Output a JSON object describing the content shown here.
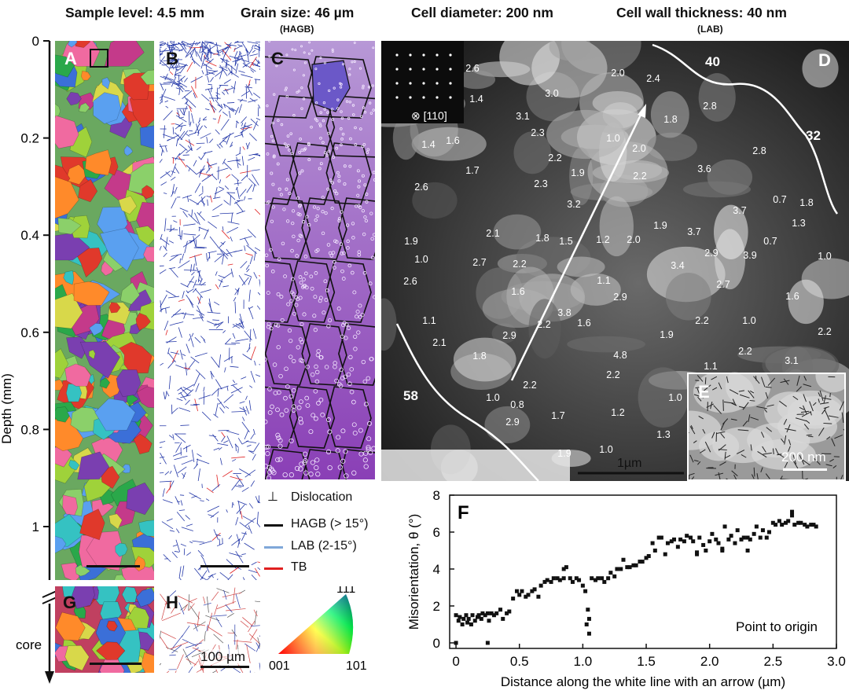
{
  "headers": {
    "sample_level": "Sample level: 4.5 mm",
    "grain_size": "Grain size: 46 µm",
    "grain_size_sub": "(HAGB)",
    "cell_diameter": "Cell diameter: 200 nm",
    "cell_wall": "Cell wall thickness: 40 nm",
    "cell_wall_sub": "(LAB)"
  },
  "panel_labels": {
    "A": "A",
    "B": "B",
    "C": "C",
    "D": "D",
    "E": "E",
    "F": "F",
    "G": "G",
    "H": "H"
  },
  "depth_axis": {
    "label": "Depth (mm)",
    "ticks": [
      "0",
      "0.2",
      "0.4",
      "0.6",
      "0.8",
      "1"
    ],
    "core_label": "core"
  },
  "legend": {
    "dislocation": "Dislocation",
    "hagb": "HAGB (> 15°)",
    "lab": "LAB (2-15°)",
    "tb": "TB",
    "colors": {
      "hagb": "#111111",
      "lab": "#7fa7d9",
      "tb": "#e02020"
    }
  },
  "ipf": {
    "top": "111",
    "left": "001",
    "right": "101"
  },
  "tem": {
    "inset_zone": "⊗ [110]",
    "scale_bar": "1µm",
    "wall_labels": [
      "40",
      "32",
      "58"
    ],
    "inset_e_scale": "200 nm",
    "cell_sizes": [
      [
        "2.6",
        601,
        91
      ],
      [
        "1.4",
        606,
        130
      ],
      [
        "3.0",
        702,
        123
      ],
      [
        "2.0",
        786,
        97
      ],
      [
        "2.4",
        831,
        104
      ],
      [
        "3.1",
        665,
        152
      ],
      [
        "1.8",
        853,
        156
      ],
      [
        "2.8",
        903,
        139
      ],
      [
        "2.3",
        684,
        173
      ],
      [
        "1.0",
        780,
        180
      ],
      [
        "2.0",
        813,
        193
      ],
      [
        "1.4",
        545,
        188
      ],
      [
        "1.6",
        576,
        183
      ],
      [
        "2.2",
        706,
        205
      ],
      [
        "2.8",
        966,
        196
      ],
      [
        "1.7",
        601,
        221
      ],
      [
        "1.9",
        735,
        224
      ],
      [
        "2.2",
        814,
        228
      ],
      [
        "3.6",
        896,
        219
      ],
      [
        "2.6",
        536,
        242
      ],
      [
        "2.3",
        688,
        238
      ],
      [
        "3.2",
        730,
        264
      ],
      [
        "0.7",
        992,
        258
      ],
      [
        "1.8",
        1026,
        262
      ],
      [
        "3.7",
        941,
        272
      ],
      [
        "1.3",
        1016,
        288
      ],
      [
        "2.1",
        627,
        301
      ],
      [
        "1.8",
        690,
        307
      ],
      [
        "1.5",
        720,
        311
      ],
      [
        "1.2",
        767,
        309
      ],
      [
        "2.0",
        806,
        309
      ],
      [
        "1.9",
        840,
        291
      ],
      [
        "3.7",
        883,
        299
      ],
      [
        "0.7",
        980,
        311
      ],
      [
        "1.9",
        523,
        311
      ],
      [
        "2.9",
        905,
        326
      ],
      [
        "3.9",
        954,
        329
      ],
      [
        "1.0",
        1049,
        330
      ],
      [
        "1.0",
        536,
        334
      ],
      [
        "2.7",
        610,
        338
      ],
      [
        "2.2",
        661,
        340
      ],
      [
        "3.4",
        862,
        342
      ],
      [
        "2.6",
        522,
        362
      ],
      [
        "1.1",
        768,
        361
      ],
      [
        "2.7",
        920,
        366
      ],
      [
        "1.6",
        659,
        375
      ],
      [
        "2.9",
        789,
        382
      ],
      [
        "1.6",
        1008,
        381
      ],
      [
        "3.8",
        718,
        402
      ],
      [
        "1.6",
        743,
        415
      ],
      [
        "2.2",
        692,
        417
      ],
      [
        "2.2",
        893,
        412
      ],
      [
        "1.0",
        953,
        412
      ],
      [
        "2.2",
        1049,
        426
      ],
      [
        "1.1",
        546,
        412
      ],
      [
        "2.1",
        559,
        440
      ],
      [
        "2.9",
        648,
        431
      ],
      [
        "1.9",
        848,
        430
      ],
      [
        "1.8",
        610,
        457
      ],
      [
        "2.2",
        948,
        451
      ],
      [
        "4.8",
        789,
        456
      ],
      [
        "1.1",
        904,
        470
      ],
      [
        "3.1",
        1007,
        463
      ],
      [
        "2.2",
        780,
        481
      ],
      [
        "2.2",
        674,
        494
      ],
      [
        "1.0",
        627,
        510
      ],
      [
        "0.8",
        658,
        519
      ],
      [
        "1.7",
        710,
        533
      ],
      [
        "1.2",
        786,
        529
      ],
      [
        "1.0",
        859,
        510
      ],
      [
        "2.9",
        652,
        541
      ],
      [
        "1.3",
        844,
        557
      ],
      [
        "1.0",
        771,
        576
      ],
      [
        "1.9",
        718,
        581
      ]
    ]
  },
  "chart_data": {
    "type": "scatter",
    "title": "",
    "xlabel": "Distance along the white line with an arrow (µm)",
    "ylabel": "Misorientation, θ (°)",
    "xlim": [
      -0.05,
      3.0
    ],
    "ylim": [
      -0.3,
      8.0
    ],
    "xticks": [
      "0",
      "0.5",
      "1.0",
      "1.5",
      "2.0",
      "2.5",
      "3.0"
    ],
    "yticks": [
      "0",
      "2",
      "4",
      "6",
      "8"
    ],
    "annotation": "Point to origin",
    "series": [
      {
        "x": [
          0.0,
          0.02,
          0.03,
          0.05,
          0.06,
          0.08,
          0.09,
          0.1,
          0.12,
          0.13,
          0.15,
          0.17,
          0.18,
          0.2,
          0.21,
          0.23,
          0.25,
          0.26,
          0.28,
          0.3,
          0.32,
          0.35,
          0.37,
          0.4,
          0.42,
          0.45,
          0.48,
          0.5,
          0.52,
          0.55,
          0.57,
          0.6,
          0.62,
          0.65,
          0.67,
          0.7,
          0.72,
          0.75,
          0.77,
          0.8,
          0.82,
          0.85,
          0.87,
          0.9,
          0.92,
          0.95,
          0.97,
          1.0,
          1.02,
          1.04,
          1.05,
          1.07,
          1.1,
          1.12,
          1.15,
          1.17,
          1.2,
          1.22,
          1.25,
          1.27,
          1.3,
          1.32,
          1.35,
          1.37,
          1.4,
          1.42,
          1.45,
          1.47,
          1.5,
          1.52,
          1.55,
          1.57,
          1.6,
          1.62,
          1.65,
          1.67,
          1.7,
          1.72,
          1.75,
          1.77,
          1.8,
          1.82,
          1.85,
          1.87,
          1.9,
          1.92,
          1.95,
          1.97,
          2.0,
          2.02,
          2.05,
          2.07,
          2.1,
          2.12,
          2.15,
          2.17,
          2.2,
          2.22,
          2.25,
          2.27,
          2.3,
          2.32,
          2.35,
          2.37,
          2.4,
          2.42,
          2.45,
          2.47,
          2.5,
          2.52,
          2.55,
          2.57,
          2.6,
          2.62,
          2.65,
          2.67,
          2.7,
          2.72,
          2.75,
          2.77,
          2.8,
          2.82,
          2.84,
          0.0,
          0.25,
          0.85,
          1.03,
          1.05,
          1.9,
          2.1,
          2.3,
          2.65
        ],
        "y": [
          1.5,
          1.2,
          1.4,
          1.0,
          1.3,
          1.5,
          1.1,
          1.3,
          1.0,
          1.5,
          1.2,
          1.4,
          1.5,
          1.3,
          1.6,
          1.5,
          1.6,
          1.2,
          1.6,
          1.5,
          1.6,
          1.8,
          1.3,
          1.6,
          1.7,
          2.4,
          2.8,
          2.6,
          2.8,
          2.5,
          2.6,
          2.8,
          2.9,
          2.5,
          3.1,
          3.3,
          3.4,
          3.3,
          3.5,
          3.5,
          3.4,
          3.5,
          4.1,
          3.5,
          3.3,
          3.5,
          3.4,
          3.1,
          2.8,
          1.8,
          1.3,
          3.5,
          3.4,
          3.5,
          3.5,
          3.3,
          3.5,
          3.8,
          3.6,
          4.0,
          4.0,
          4.5,
          4.1,
          4.1,
          4.2,
          4.2,
          4.4,
          4.4,
          4.6,
          4.7,
          5.4,
          5.0,
          5.7,
          5.7,
          4.8,
          5.4,
          5.5,
          5.6,
          5.2,
          5.6,
          5.5,
          5.8,
          5.7,
          5.5,
          4.8,
          5.7,
          5.3,
          5.0,
          5.5,
          5.9,
          5.6,
          5.4,
          5.1,
          6.3,
          5.6,
          5.8,
          5.4,
          6.1,
          5.6,
          5.7,
          5.7,
          5.6,
          5.9,
          6.3,
          5.7,
          6.1,
          5.7,
          6.0,
          6.5,
          6.4,
          6.6,
          6.4,
          6.5,
          6.6,
          6.9,
          6.4,
          6.5,
          6.5,
          6.4,
          6.3,
          6.4,
          6.4,
          6.3,
          0.0,
          0.0,
          4.0,
          1.0,
          0.5,
          4.9,
          5.0,
          5.0,
          7.1
        ]
      }
    ]
  }
}
